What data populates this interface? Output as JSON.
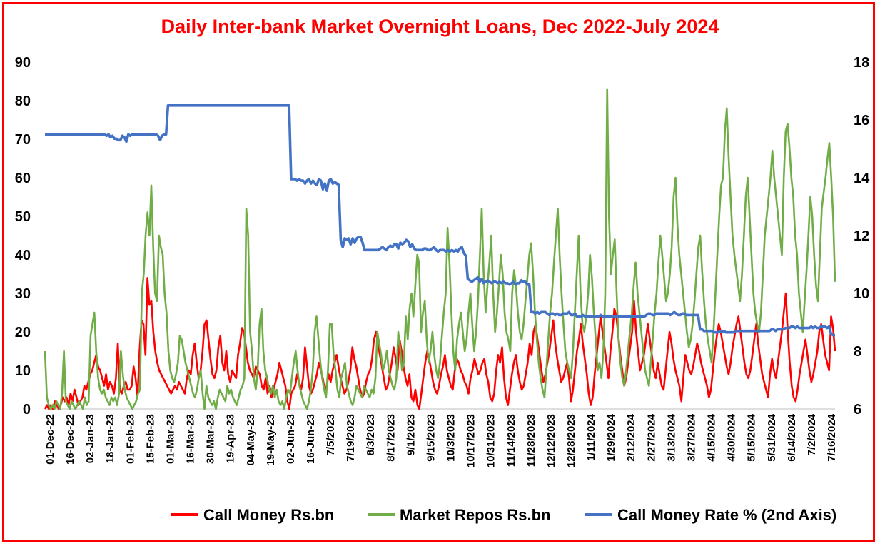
{
  "chart_data": {
    "type": "line",
    "title": "Daily Inter-bank Market Overnight Loans, Dec 2022-July 2024",
    "colors": {
      "call_money": "#ff0000",
      "repos": "#70ad47",
      "rate": "#4472c4",
      "border": "#ff0000"
    },
    "y_left": {
      "ylim": [
        0,
        90
      ],
      "ticks": [
        "0",
        "10",
        "20",
        "30",
        "40",
        "50",
        "60",
        "70",
        "80",
        "90"
      ]
    },
    "y_right": {
      "ylim": [
        6,
        18
      ],
      "ticks": [
        "6",
        "8",
        "10",
        "12",
        "14",
        "16",
        "18"
      ]
    },
    "x_tick_labels": [
      "01-Dec-22",
      "16-Dec-22",
      "02-Jan-23",
      "18-Jan-23",
      "01-Feb-23",
      "15-Feb-23",
      "01-Mar-23",
      "16-Mar-23",
      "30-Mar-23",
      "19-Apr-23",
      "04-May-23",
      "19-May-23",
      "02-Jun-23",
      "16-Jun-23",
      "7/5/2023",
      "7/19/2023",
      "8/3/2023",
      "8/17/2023",
      "9/1/2023",
      "9/15/2023",
      "10/3/2023",
      "10/17/2023",
      "10/31/2023",
      "11/14/2023",
      "11/28/2023",
      "12/12/2023",
      "12/28/2023",
      "1/11/2024",
      "1/29/2024",
      "2/12/2024",
      "2/27/2024",
      "3/13/2024",
      "3/27/2024",
      "4/15/2024",
      "4/30/2024",
      "5/15/2024",
      "5/31/2024",
      "6/14/2024",
      "7/2/2024",
      "7/16/2024"
    ],
    "grid": false,
    "legend_position": "bottom-right",
    "series": [
      {
        "name": "Call Money Rs.bn",
        "axis": "left",
        "values": [
          0,
          1,
          0,
          1,
          0,
          2,
          1,
          0,
          1,
          3,
          2,
          3,
          1,
          4,
          2,
          5,
          3,
          1,
          2,
          3,
          6,
          5,
          7,
          9,
          10,
          12,
          14,
          11,
          10,
          8,
          6,
          9,
          5,
          7,
          6,
          4,
          8,
          17,
          5,
          4,
          6,
          7,
          5,
          5,
          6,
          11,
          8,
          3,
          15,
          23,
          22,
          14,
          34,
          27,
          28,
          20,
          15,
          12,
          10,
          9,
          8,
          7,
          6,
          5,
          4,
          5,
          6,
          5,
          7,
          6,
          5,
          4,
          8,
          10,
          9,
          14,
          17,
          12,
          8,
          10,
          15,
          22,
          23,
          18,
          13,
          9,
          8,
          10,
          16,
          19,
          12,
          10,
          15,
          9,
          7,
          10,
          9,
          8,
          14,
          17,
          21,
          20,
          16,
          12,
          10,
          9,
          8,
          11,
          10,
          9,
          6,
          5,
          8,
          4,
          6,
          3,
          5,
          7,
          9,
          12,
          10,
          8,
          6,
          2,
          0,
          4,
          5,
          6,
          9,
          7,
          5,
          8,
          16,
          11,
          6,
          4,
          5,
          7,
          9,
          12,
          10,
          8,
          5,
          6,
          9,
          7,
          10,
          12,
          14,
          11,
          8,
          6,
          4,
          5,
          7,
          10,
          16,
          13,
          11,
          8,
          5,
          3,
          4,
          7,
          9,
          10,
          13,
          18,
          20,
          17,
          14,
          11,
          8,
          5,
          6,
          9,
          12,
          16,
          13,
          10,
          18,
          15,
          11,
          8,
          6,
          9,
          3,
          2,
          5,
          1,
          0,
          4,
          8,
          12,
          15,
          13,
          10,
          7,
          5,
          4,
          6,
          9,
          11,
          14,
          10,
          8,
          6,
          5,
          10,
          13,
          12,
          10,
          9,
          7,
          6,
          4,
          8,
          10,
          13,
          11,
          9,
          10,
          12,
          13,
          9,
          7,
          3,
          2,
          4,
          10,
          14,
          12,
          16,
          8,
          3,
          1,
          5,
          9,
          12,
          14,
          10,
          7,
          5,
          6,
          9,
          12,
          17,
          14,
          20,
          22,
          18,
          14,
          10,
          7,
          9,
          12,
          15,
          19,
          23,
          17,
          13,
          10,
          7,
          8,
          10,
          12,
          8,
          2,
          5,
          10,
          15,
          18,
          22,
          17,
          13,
          9,
          4,
          1,
          3,
          9,
          14,
          19,
          24,
          20,
          16,
          12,
          8,
          15,
          20,
          26,
          24,
          19,
          14,
          10,
          6,
          8,
          12,
          16,
          20,
          28,
          20,
          15,
          10,
          12,
          14,
          18,
          22,
          18,
          14,
          10,
          8,
          12,
          9,
          6,
          5,
          10,
          15,
          20,
          17,
          13,
          10,
          8,
          6,
          2,
          8,
          14,
          12,
          10,
          9,
          11,
          14,
          17,
          15,
          12,
          10,
          8,
          6,
          3,
          5,
          10,
          15,
          19,
          22,
          20,
          17,
          14,
          11,
          9,
          12,
          16,
          19,
          22,
          24,
          20,
          16,
          12,
          9,
          8,
          10,
          14,
          18,
          22,
          17,
          13,
          9,
          7,
          5,
          3,
          9,
          13,
          10,
          8,
          12,
          16,
          20,
          25,
          30,
          20,
          12,
          6,
          3,
          2,
          5,
          9,
          12,
          15,
          18,
          14,
          10,
          7,
          9,
          12,
          15,
          20,
          22,
          18,
          14,
          12,
          10,
          24,
          21,
          15
        ]
      },
      {
        "name": "Market Repos Rs.bn",
        "axis": "left",
        "values": [
          15,
          3,
          1,
          0,
          1,
          0,
          2,
          1,
          0,
          4,
          15,
          2,
          1,
          0,
          2,
          1,
          0,
          1,
          2,
          1,
          0,
          3,
          1,
          2,
          19,
          22,
          25,
          15,
          8,
          5,
          4,
          5,
          3,
          2,
          1,
          3,
          2,
          3,
          1,
          4,
          15,
          9,
          5,
          3,
          2,
          1,
          0,
          1,
          2,
          4,
          5,
          30,
          35,
          45,
          51,
          45,
          58,
          42,
          30,
          28,
          45,
          42,
          40,
          30,
          25,
          15,
          10,
          8,
          7,
          9,
          12,
          19,
          18,
          15,
          12,
          10,
          8,
          6,
          4,
          3,
          5,
          8,
          10,
          4,
          0,
          6,
          3,
          2,
          1,
          2,
          0,
          3,
          5,
          4,
          3,
          2,
          6,
          4,
          5,
          3,
          2,
          1,
          3,
          5,
          6,
          8,
          52,
          45,
          20,
          15,
          8,
          5,
          10,
          22,
          26,
          15,
          10,
          8,
          5,
          4,
          6,
          3,
          5,
          2,
          1,
          2,
          0,
          3,
          5,
          4,
          8,
          12,
          15,
          10,
          6,
          4,
          2,
          1,
          0,
          2,
          5,
          10,
          20,
          24,
          18,
          12,
          8,
          5,
          3,
          10,
          22,
          22,
          14,
          10,
          5,
          3,
          8,
          10,
          12,
          6,
          4,
          2,
          1,
          3,
          6,
          5,
          4,
          3,
          6,
          5,
          4,
          3,
          5,
          4,
          8,
          20,
          17,
          14,
          10,
          12,
          15,
          10,
          8,
          6,
          5,
          8,
          20,
          16,
          10,
          12,
          24,
          18,
          26,
          30,
          24,
          32,
          40,
          38,
          20,
          25,
          28,
          18,
          12,
          15,
          20,
          14,
          10,
          8,
          12,
          19,
          25,
          30,
          47,
          38,
          25,
          15,
          10,
          18,
          22,
          25,
          20,
          15,
          18,
          25,
          30,
          22,
          15,
          20,
          28,
          40,
          52,
          35,
          25,
          32,
          38,
          45,
          30,
          20,
          25,
          32,
          40,
          35,
          25,
          20,
          18,
          15,
          30,
          36,
          32,
          25,
          20,
          18,
          22,
          28,
          34,
          40,
          43,
          35,
          25,
          18,
          12,
          8,
          5,
          3,
          10,
          18,
          25,
          30,
          38,
          45,
          52,
          40,
          30,
          22,
          15,
          12,
          10,
          8,
          15,
          25,
          35,
          45,
          30,
          22,
          20,
          24,
          30,
          40,
          34,
          25,
          18,
          10,
          12,
          8,
          15,
          30,
          83,
          50,
          35,
          40,
          44,
          30,
          18,
          12,
          8,
          6,
          10,
          15,
          20,
          25,
          32,
          38,
          30,
          25,
          20,
          15,
          10,
          8,
          6,
          12,
          18,
          25,
          30,
          38,
          45,
          40,
          34,
          28,
          30,
          35,
          42,
          55,
          60,
          48,
          40,
          35,
          30,
          25,
          20,
          16,
          18,
          22,
          28,
          35,
          42,
          45,
          36,
          28,
          22,
          18,
          15,
          12,
          20,
          30,
          40,
          50,
          58,
          60,
          72,
          78,
          65,
          55,
          45,
          40,
          36,
          32,
          28,
          35,
          45,
          55,
          60,
          50,
          40,
          30,
          25,
          22,
          20,
          25,
          35,
          45,
          50,
          55,
          60,
          67,
          60,
          55,
          50,
          45,
          40,
          60,
          72,
          74,
          68,
          60,
          55,
          45,
          40,
          30,
          25,
          20,
          28,
          36,
          45,
          55,
          50,
          40,
          32,
          28,
          40,
          52,
          56,
          60,
          65,
          69,
          60,
          50,
          33
        ]
      },
      {
        "name": "Call Money Rate % (2nd Axis)",
        "axis": "right",
        "values": [
          15.5,
          15.5,
          15.5,
          15.5,
          15.5,
          15.5,
          15.5,
          15.5,
          15.5,
          15.5,
          15.5,
          15.5,
          15.5,
          15.5,
          15.5,
          15.5,
          15.5,
          15.5,
          15.5,
          15.5,
          15.5,
          15.5,
          15.5,
          15.5,
          15.5,
          15.5,
          15.5,
          15.5,
          15.5,
          15.5,
          15.5,
          15.45,
          15.5,
          15.4,
          15.45,
          15.35,
          15.35,
          15.3,
          15.3,
          15.45,
          15.4,
          15.25,
          15.5,
          15.45,
          15.5,
          15.5,
          15.5,
          15.5,
          15.5,
          15.5,
          15.5,
          15.5,
          15.5,
          15.5,
          15.5,
          15.5,
          15.5,
          15.45,
          15.3,
          15.45,
          15.5,
          15.5,
          16.5,
          16.5,
          16.5,
          16.5,
          16.5,
          16.5,
          16.5,
          16.5,
          16.5,
          16.5,
          16.5,
          16.5,
          16.5,
          16.5,
          16.5,
          16.5,
          16.5,
          16.5,
          16.5,
          16.5,
          16.5,
          16.5,
          16.5,
          16.5,
          16.5,
          16.5,
          16.5,
          16.5,
          16.5,
          16.5,
          16.5,
          16.5,
          16.5,
          16.5,
          16.5,
          16.5,
          16.5,
          16.5,
          16.5,
          16.5,
          16.5,
          16.5,
          16.5,
          16.5,
          16.5,
          16.5,
          16.5,
          16.5,
          16.5,
          16.5,
          16.5,
          16.5,
          16.5,
          16.5,
          16.5,
          16.5,
          16.5,
          16.5,
          16.5,
          16.5,
          16.5,
          16.5,
          13.95,
          13.95,
          13.95,
          13.9,
          13.95,
          13.9,
          13.9,
          13.8,
          13.9,
          13.95,
          13.8,
          13.9,
          13.8,
          13.75,
          13.95,
          13.9,
          13.6,
          13.8,
          13.55,
          13.9,
          13.95,
          13.8,
          13.85,
          13.8,
          13.75,
          11.85,
          11.6,
          11.9,
          11.85,
          11.9,
          11.7,
          11.9,
          11.75,
          11.9,
          11.95,
          11.95,
          11.75,
          11.5,
          11.5,
          11.5,
          11.5,
          11.5,
          11.5,
          11.5,
          11.5,
          11.55,
          11.6,
          11.55,
          11.5,
          11.6,
          11.65,
          11.6,
          11.7,
          11.7,
          11.55,
          11.75,
          11.7,
          11.75,
          11.85,
          11.8,
          11.6,
          11.7,
          11.55,
          11.5,
          11.5,
          11.5,
          11.5,
          11.55,
          11.55,
          11.5,
          11.5,
          11.55,
          11.6,
          11.5,
          11.45,
          11.5,
          11.5,
          11.5,
          11.45,
          11.5,
          11.45,
          11.5,
          11.45,
          11.5,
          11.45,
          11.55,
          11.6,
          11.4,
          11.3,
          10.5,
          10.45,
          10.4,
          10.45,
          10.5,
          10.55,
          10.4,
          10.5,
          10.35,
          10.4,
          10.45,
          10.4,
          10.35,
          10.4,
          10.4,
          10.35,
          10.4,
          10.35,
          10.4,
          10.35,
          10.35,
          10.3,
          10.35,
          10.4,
          10.3,
          10.35,
          10.35,
          10.45,
          10.4,
          10.4,
          10.3,
          10.3,
          9.35,
          9.35,
          9.3,
          9.35,
          9.3,
          9.35,
          9.35,
          9.35,
          9.3,
          9.25,
          9.3,
          9.3,
          9.25,
          9.3,
          9.25,
          9.25,
          9.3,
          9.3,
          9.3,
          9.35,
          9.25,
          9.25,
          9.3,
          9.2,
          9.2,
          9.2,
          9.25,
          9.2,
          9.2,
          9.2,
          9.2,
          9.2,
          9.2,
          9.2,
          9.2,
          9.25,
          9.2,
          9.2,
          9.2,
          9.2,
          9.2,
          9.2,
          9.2,
          9.2,
          9.2,
          9.2,
          9.2,
          9.2,
          9.2,
          9.2,
          9.2,
          9.2,
          9.2,
          9.2,
          9.2,
          9.2,
          9.2,
          9.2,
          9.25,
          9.3,
          9.3,
          9.25,
          9.25,
          9.3,
          9.3,
          9.3,
          9.3,
          9.3,
          9.3,
          9.3,
          9.25,
          9.3,
          9.35,
          9.3,
          9.25,
          9.25,
          9.3,
          9.3,
          9.25,
          9.25,
          9.25,
          9.25,
          9.25,
          9.25,
          9.25,
          8.75,
          8.75,
          8.7,
          8.7,
          8.7,
          8.7,
          8.7,
          8.65,
          8.65,
          8.65,
          8.7,
          8.65,
          8.7,
          8.65,
          8.65,
          8.65,
          8.65,
          8.65,
          8.7,
          8.7,
          8.7,
          8.7,
          8.7,
          8.7,
          8.7,
          8.7,
          8.7,
          8.7,
          8.7,
          8.7,
          8.7,
          8.7,
          8.7,
          8.7,
          8.7,
          8.7,
          8.75,
          8.75,
          8.7,
          8.75,
          8.75,
          8.75,
          8.75,
          8.8,
          8.8,
          8.8,
          8.85,
          8.85,
          8.8,
          8.85,
          8.8,
          8.8,
          8.8,
          8.8,
          8.8,
          8.8,
          8.85,
          8.8,
          8.85,
          8.8,
          8.8,
          8.85,
          8.85,
          8.85,
          8.8,
          8.85,
          8.6,
          8.55,
          8.55
        ]
      }
    ]
  }
}
